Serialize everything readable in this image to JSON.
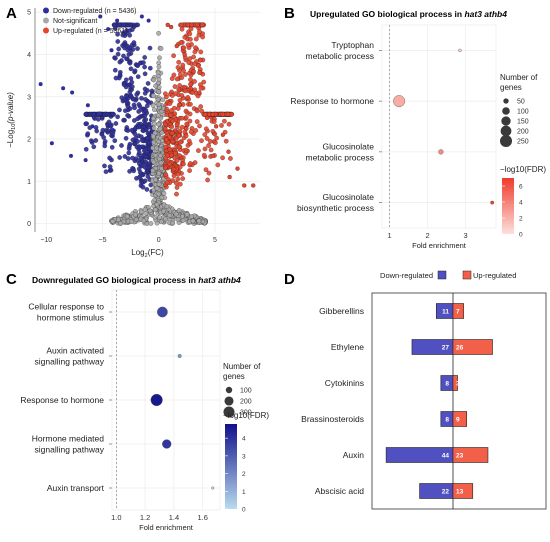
{
  "panels": {
    "A": {
      "letter": "A"
    },
    "B": {
      "letter": "B",
      "title_prefix": "Upregulated GO biological process in ",
      "title_genes": "hat3 athb4"
    },
    "C": {
      "letter": "C",
      "title_prefix": "Downregulated GO biological process in ",
      "title_genes": "hat3 athb4"
    },
    "D": {
      "letter": "D"
    }
  },
  "colors": {
    "down": "#2f2f9a",
    "up": "#e8452c",
    "ns": "#a8a8a8",
    "bar_down": "#5050c0",
    "bar_up": "#f2604a",
    "fdr_low_red": "#fde0dd",
    "fdr_high_red": "#ef3b2c",
    "fdr_low_blue": "#b8dcef",
    "fdr_high_blue": "#10108a"
  },
  "chart_data": [
    {
      "type": "scatter",
      "panel": "A",
      "xlabel_base": "Log",
      "xlabel_sub": "2",
      "xlabel_tail": "(FC)",
      "ylabel_pre": "−Log",
      "ylabel_sub": "10",
      "ylabel_tail": "(p-value)",
      "xlim": [
        -11,
        9
      ],
      "ylim": [
        -0.2,
        5.1
      ],
      "xticks": [
        -10,
        -5,
        0,
        5
      ],
      "yticks": [
        0,
        1,
        2,
        3,
        4,
        5
      ],
      "legend": [
        {
          "key": "down",
          "label": "Down-regulated (n = 5436)"
        },
        {
          "key": "ns",
          "label": "Not-significant"
        },
        {
          "key": "up",
          "label": "Up-regulated (n = 5361)"
        }
      ],
      "outliers_down": [
        [
          -10.5,
          3.3
        ],
        [
          -8.5,
          3.2
        ],
        [
          -7.7,
          3.1
        ],
        [
          -5.2,
          4.9
        ],
        [
          -4.5,
          4.6
        ],
        [
          -4.2,
          4.1
        ],
        [
          -3.7,
          4.8
        ],
        [
          -1.5,
          4.9
        ],
        [
          -0.9,
          4.8
        ],
        [
          -6.3,
          2.8
        ],
        [
          -5.9,
          2.3
        ],
        [
          -5.3,
          2.6
        ],
        [
          -9.5,
          1.9
        ],
        [
          -7.8,
          1.6
        ],
        [
          -6.5,
          1.5
        ],
        [
          -4.8,
          1.9
        ],
        [
          -4.0,
          2.2
        ]
      ],
      "outliers_up": [
        [
          0.8,
          4.7
        ],
        [
          1.1,
          4.65
        ],
        [
          1.6,
          4.2
        ],
        [
          2.3,
          4.0
        ],
        [
          3.1,
          3.6
        ],
        [
          3.6,
          3.1
        ],
        [
          4.3,
          2.5
        ],
        [
          5.1,
          2.3
        ],
        [
          5.7,
          2.1
        ],
        [
          6.2,
          1.7
        ],
        [
          7.0,
          1.3
        ],
        [
          7.6,
          0.9
        ],
        [
          8.4,
          0.9
        ],
        [
          4.8,
          1.6
        ],
        [
          6.3,
          1.1
        ]
      ]
    },
    {
      "type": "scatter",
      "panel": "B",
      "xlabel": "Fold enrichment",
      "xlim": [
        0.8,
        3.8
      ],
      "xticks": [
        1,
        2,
        3
      ],
      "ref_line": 1,
      "categories": [
        "Tryptophan\nmetabolic process",
        "Response to hormone",
        "Glucosinolate\nmetabolic process",
        "Glucosinolate\nbiosynthetic process"
      ],
      "x": [
        2.85,
        1.25,
        2.35,
        3.7
      ],
      "genes": [
        15,
        230,
        40,
        20
      ],
      "fdr": [
        0.6,
        2.2,
        3.6,
        6.8
      ],
      "size_legend_title": "Number of\ngenes",
      "size_legend": [
        50,
        100,
        150,
        200,
        250
      ],
      "color_legend_title": "−log10(FDR)",
      "color_ticks": [
        0,
        2,
        4,
        6
      ],
      "color_range": [
        0,
        7
      ]
    },
    {
      "type": "scatter",
      "panel": "C",
      "xlabel": "Fold enrichment",
      "xlim": [
        0.97,
        1.72
      ],
      "xticks": [
        1.0,
        1.2,
        1.4,
        1.6
      ],
      "ref_line": 1.0,
      "categories": [
        "Cellular response to\nhormone stimulus",
        "Auxin activated\nsignalling pathway",
        "Response to hormone",
        "Hormone mediated\nsignalling pathway",
        "Auxin transport"
      ],
      "x": [
        1.32,
        1.44,
        1.28,
        1.35,
        1.67
      ],
      "genes": [
        260,
        30,
        330,
        190,
        15
      ],
      "fdr": [
        3.5,
        1.6,
        4.6,
        3.9,
        0.2
      ],
      "size_legend_title": "Number of\ngenes",
      "size_legend": [
        100,
        200,
        300
      ],
      "color_legend_title": "−log10(FDR)",
      "color_ticks": [
        0,
        1,
        2,
        3,
        4
      ],
      "color_range": [
        0,
        4.8
      ]
    },
    {
      "type": "bar",
      "panel": "D",
      "legend": [
        {
          "key": "down",
          "label": "Down-regulated"
        },
        {
          "key": "up",
          "label": "Up-regulated"
        }
      ],
      "categories": [
        "Gibberellins",
        "Ethylene",
        "Cytokinins",
        "Brassinosteroids",
        "Auxin",
        "Abscisic acid"
      ],
      "series": [
        {
          "name": "Down-regulated",
          "values": [
            11,
            27,
            8,
            8,
            44,
            22
          ]
        },
        {
          "name": "Up-regulated",
          "values": [
            7,
            26,
            3,
            9,
            23,
            13
          ]
        }
      ]
    }
  ]
}
